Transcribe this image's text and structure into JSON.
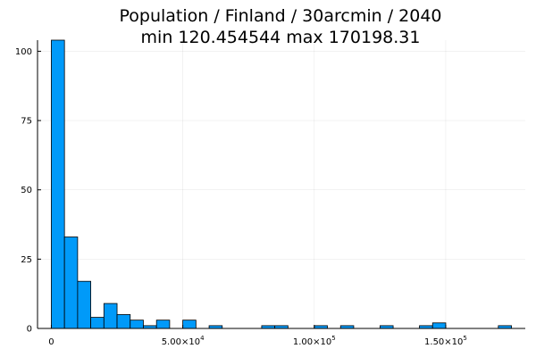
{
  "chart_data": {
    "type": "bar",
    "title": [
      "Population / Finland / 30arcmin / 2040",
      "min 120.454544  max 170198.31"
    ],
    "xlabel": "",
    "ylabel": "",
    "bin_width": 5000,
    "bins": [
      {
        "x0": 0,
        "x1": 5000,
        "count": 104
      },
      {
        "x0": 5000,
        "x1": 10000,
        "count": 33
      },
      {
        "x0": 10000,
        "x1": 15000,
        "count": 17
      },
      {
        "x0": 15000,
        "x1": 20000,
        "count": 4
      },
      {
        "x0": 20000,
        "x1": 25000,
        "count": 9
      },
      {
        "x0": 25000,
        "x1": 30000,
        "count": 5
      },
      {
        "x0": 30000,
        "x1": 35000,
        "count": 3
      },
      {
        "x0": 35000,
        "x1": 40000,
        "count": 1
      },
      {
        "x0": 40000,
        "x1": 45000,
        "count": 3
      },
      {
        "x0": 50000,
        "x1": 55000,
        "count": 3
      },
      {
        "x0": 60000,
        "x1": 65000,
        "count": 1
      },
      {
        "x0": 80000,
        "x1": 85000,
        "count": 1
      },
      {
        "x0": 85000,
        "x1": 90000,
        "count": 1
      },
      {
        "x0": 100000,
        "x1": 105000,
        "count": 1
      },
      {
        "x0": 110000,
        "x1": 115000,
        "count": 1
      },
      {
        "x0": 125000,
        "x1": 130000,
        "count": 1
      },
      {
        "x0": 140000,
        "x1": 145000,
        "count": 1
      },
      {
        "x0": 145000,
        "x1": 150000,
        "count": 2
      },
      {
        "x0": 170000,
        "x1": 175000,
        "count": 1
      }
    ],
    "xlim": [
      -5250,
      180250
    ],
    "ylim": [
      0,
      104
    ],
    "x_ticks": [
      {
        "value": 0,
        "base": "0",
        "exp": ""
      },
      {
        "value": 50000,
        "base": "5.00×10",
        "exp": "4"
      },
      {
        "value": 100000,
        "base": "1.00×10",
        "exp": "5"
      },
      {
        "value": 150000,
        "base": "1.50×10",
        "exp": "5"
      }
    ],
    "y_ticks": [
      0,
      25,
      50,
      75,
      100
    ],
    "bar_color": "#009af9",
    "grid": true,
    "legend": false
  }
}
